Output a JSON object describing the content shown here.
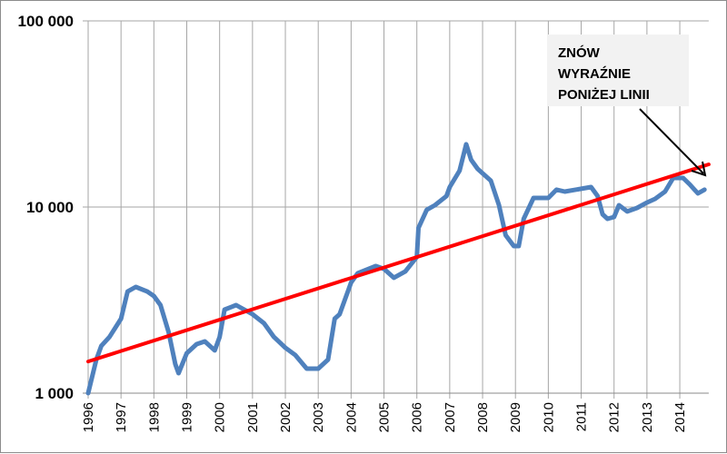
{
  "chart_data": {
    "type": "line",
    "title": "",
    "xlabel": "",
    "ylabel": "",
    "y_scale": "log",
    "ylim": [
      1000,
      100000
    ],
    "xlim": [
      1996,
      2014.88
    ],
    "y_ticks": [
      {
        "value": 1000,
        "label": "1 000"
      },
      {
        "value": 10000,
        "label": "10 000"
      },
      {
        "value": 100000,
        "label": "100 000"
      }
    ],
    "x_ticks": [
      "1996",
      "1997",
      "1998",
      "1999",
      "2000",
      "2001",
      "2002",
      "2003",
      "2004",
      "2005",
      "2006",
      "2007",
      "2008",
      "2009",
      "2010",
      "2011",
      "2012",
      "2013",
      "2014"
    ],
    "grid": {
      "vertical": true,
      "horizontal": true
    },
    "series": [
      {
        "color": "#4f81bd",
        "points": [
          [
            1996.0,
            1000
          ],
          [
            1996.25,
            1515
          ],
          [
            1996.4,
            1795
          ],
          [
            1996.65,
            2005
          ],
          [
            1997.0,
            2512
          ],
          [
            1997.2,
            3516
          ],
          [
            1997.45,
            3722
          ],
          [
            1997.8,
            3516
          ],
          [
            1998.0,
            3327
          ],
          [
            1998.2,
            2972
          ],
          [
            1998.45,
            2123
          ],
          [
            1998.65,
            1432
          ],
          [
            1998.75,
            1280
          ],
          [
            1999.0,
            1640
          ],
          [
            1999.3,
            1834
          ],
          [
            1999.55,
            1897
          ],
          [
            1999.85,
            1697
          ],
          [
            2000.0,
            2005
          ],
          [
            2000.15,
            2812
          ],
          [
            2000.5,
            2972
          ],
          [
            2001.0,
            2655
          ],
          [
            2001.35,
            2374
          ],
          [
            2001.65,
            2005
          ],
          [
            2002.0,
            1754
          ],
          [
            2002.3,
            1603
          ],
          [
            2002.65,
            1355
          ],
          [
            2003.0,
            1355
          ],
          [
            2003.3,
            1515
          ],
          [
            2003.5,
            2512
          ],
          [
            2003.65,
            2655
          ],
          [
            2004.0,
            3936
          ],
          [
            2004.2,
            4406
          ],
          [
            2004.75,
            4819
          ],
          [
            2005.0,
            4656
          ],
          [
            2005.3,
            4168
          ],
          [
            2005.65,
            4508
          ],
          [
            2006.0,
            5395
          ],
          [
            2006.05,
            7725
          ],
          [
            2006.3,
            9661
          ],
          [
            2006.55,
            10230
          ],
          [
            2006.9,
            11450
          ],
          [
            2007.0,
            12800
          ],
          [
            2007.3,
            15670
          ],
          [
            2007.5,
            21730
          ],
          [
            2007.65,
            17950
          ],
          [
            2007.85,
            16030
          ],
          [
            2008.25,
            13850
          ],
          [
            2008.5,
            10230
          ],
          [
            2008.7,
            7060
          ],
          [
            2008.95,
            6170
          ],
          [
            2009.1,
            6170
          ],
          [
            2009.25,
            8640
          ],
          [
            2009.55,
            11190
          ],
          [
            2010.0,
            11190
          ],
          [
            2010.25,
            12390
          ],
          [
            2010.5,
            12110
          ],
          [
            2011.0,
            12530
          ],
          [
            2011.3,
            12800
          ],
          [
            2011.5,
            11450
          ],
          [
            2011.65,
            9140
          ],
          [
            2011.8,
            8640
          ],
          [
            2012.0,
            8840
          ],
          [
            2012.15,
            10230
          ],
          [
            2012.4,
            9460
          ],
          [
            2012.7,
            9890
          ],
          [
            2013.0,
            10570
          ],
          [
            2013.25,
            11060
          ],
          [
            2013.55,
            12110
          ],
          [
            2013.8,
            14330
          ],
          [
            2014.1,
            14330
          ],
          [
            2014.3,
            13240
          ],
          [
            2014.55,
            11840
          ],
          [
            2014.75,
            12390
          ]
        ]
      },
      {
        "color": "#ff0000",
        "points": [
          [
            1996.0,
            1480
          ],
          [
            2014.88,
            16950
          ]
        ]
      }
    ],
    "annotations": [
      {
        "lines": [
          "ZNÓW",
          "WYRAŹNIE",
          "PONIŻEJ LINII"
        ],
        "arrow_to": [
          2014.82,
          16500
        ]
      }
    ]
  }
}
